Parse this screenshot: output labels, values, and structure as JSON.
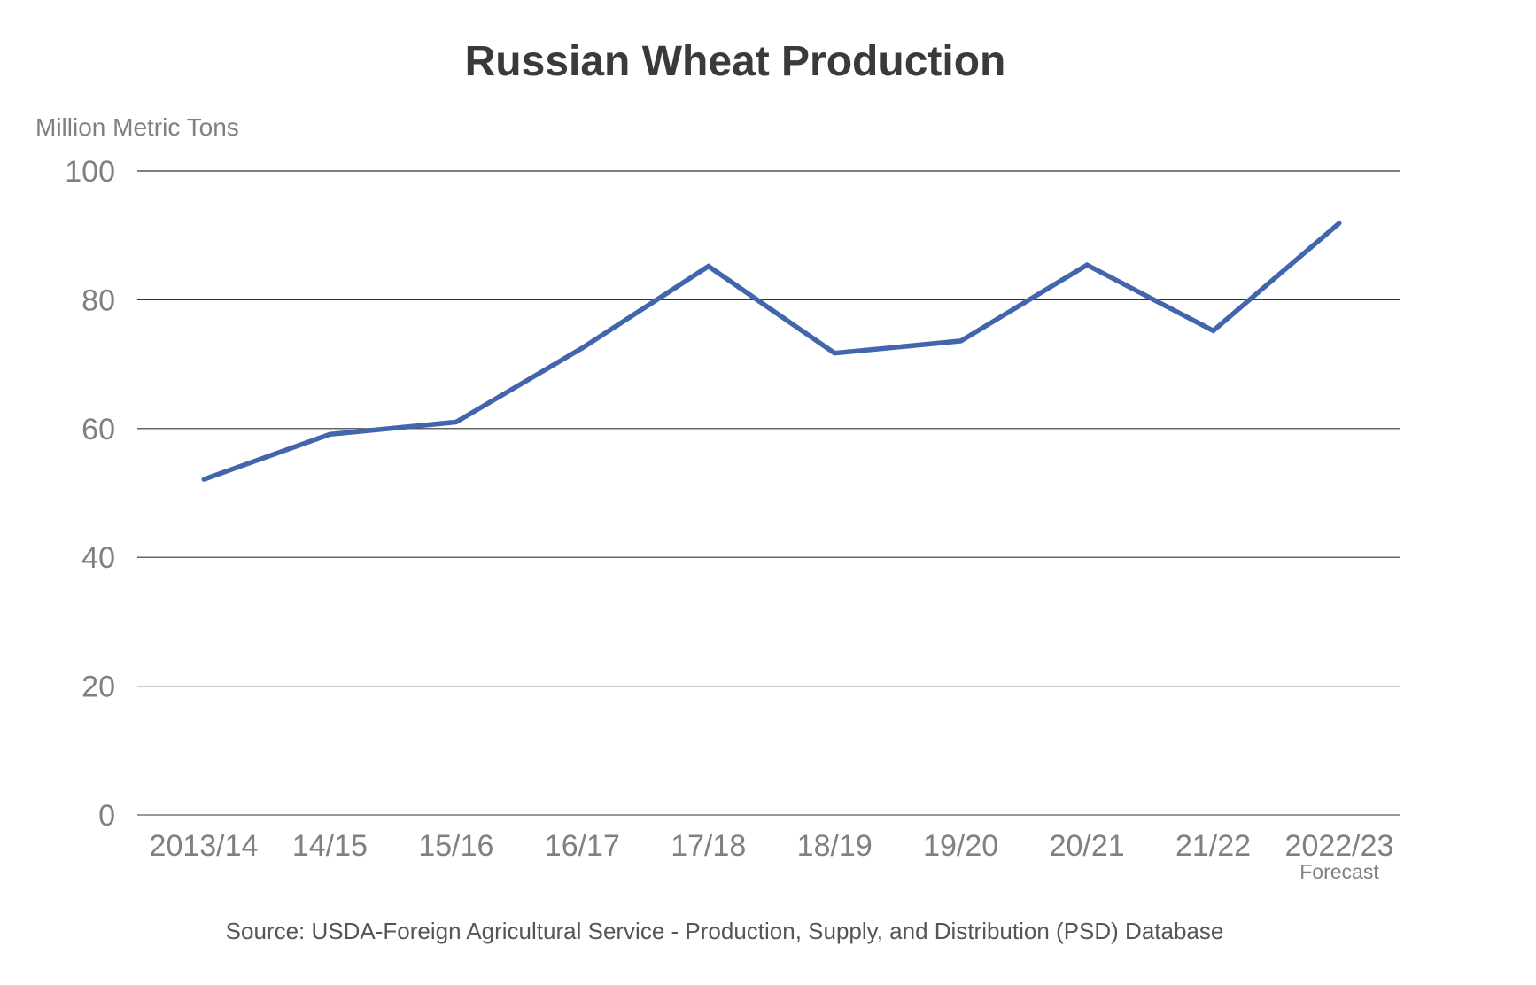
{
  "chart_data": {
    "type": "line",
    "title": "Russian Wheat Production",
    "ylabel": "Million Metric Tons",
    "xlabel": "",
    "categories": [
      "2013/14",
      "14/15",
      "15/16",
      "16/17",
      "17/18",
      "18/19",
      "19/20",
      "20/21",
      "21/22",
      "2022/23"
    ],
    "category_notes": [
      "",
      "",
      "",
      "",
      "",
      "",
      "",
      "",
      "",
      "Forecast"
    ],
    "series": [
      {
        "values": [
          52.1,
          59.1,
          61.0,
          72.5,
          85.2,
          71.7,
          73.6,
          85.4,
          75.2,
          91.9
        ],
        "color": "#4266ac"
      }
    ],
    "ylim": [
      0,
      100
    ],
    "yticks": [
      0,
      20,
      40,
      60,
      80,
      100
    ],
    "grid": true,
    "legend": "none",
    "source": "Source: USDA-Foreign Agricultural Service - Production, Supply, and Distribution (PSD) Database"
  },
  "colors": {
    "title": "#3a3a3a",
    "axis_text": "#808080",
    "source_text": "#555555",
    "grid": "#333333",
    "baseline": "#999999"
  }
}
